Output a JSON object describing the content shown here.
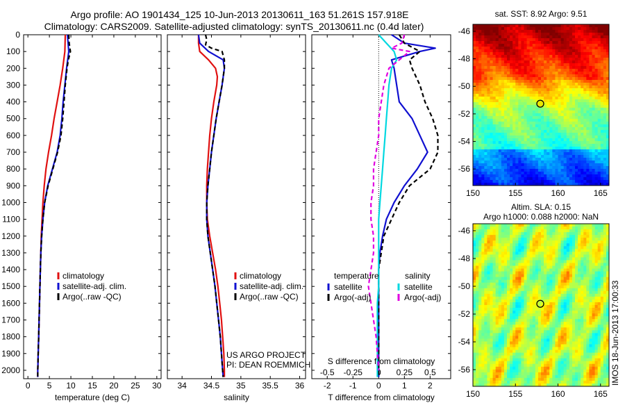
{
  "header": {
    "line1": "Argo profile: AO 1901434_125 10-Jun-2013 20130611_163 51.261S 157.918E",
    "line2": "Climatology: CARS2009. Satellite-adjusted climatology: synTS_20130611.nc (0.4d later)"
  },
  "colors": {
    "climatology": "#e01010",
    "satellite": "#1010d0",
    "argo": "#000000",
    "sal_satellite": "#00d8e0",
    "sal_argo": "#e000e0"
  },
  "depth_axis": {
    "ylim": [
      0,
      2050
    ],
    "ticks": [
      0,
      100,
      200,
      300,
      400,
      500,
      600,
      700,
      800,
      900,
      1000,
      1100,
      1200,
      1300,
      1400,
      1500,
      1600,
      1700,
      1800,
      1900,
      2000
    ]
  },
  "credits": {
    "line1": "US ARGO PROJECT",
    "line2": "PI: DEAN ROEMMICH"
  },
  "timestamp": "IMOS 18-Jun-2013 17:00:33",
  "chart_data": [
    {
      "type": "line",
      "xlabel": "temperature (deg C)",
      "ylabel": "",
      "xlim": [
        -1,
        31
      ],
      "ylim": [
        2050,
        0
      ],
      "xticks": [
        0,
        5,
        10,
        15,
        20,
        25,
        30
      ],
      "legend": [
        "climatology",
        "satellite-adj. clim.",
        "Argo(..raw -QC)"
      ],
      "series": [
        {
          "name": "climatology",
          "y": [
            0,
            100,
            200,
            300,
            400,
            500,
            600,
            700,
            800,
            900,
            1000,
            1100,
            1200,
            1300,
            1400,
            1500,
            1600,
            1700,
            1800,
            1900,
            2000,
            2040
          ],
          "values": [
            8.7,
            8.6,
            8.1,
            7.5,
            6.8,
            6.1,
            5.5,
            4.8,
            4.2,
            3.8,
            3.5,
            3.3,
            3.1,
            3.0,
            2.9,
            2.8,
            2.7,
            2.6,
            2.5,
            2.4,
            2.3,
            2.3
          ]
        },
        {
          "name": "satellite-adj. clim.",
          "y": [
            0,
            100,
            200,
            300,
            400,
            500,
            600,
            700,
            800,
            900,
            1000,
            1100,
            1200,
            1300,
            1400,
            1500,
            1600,
            1700,
            1800,
            1900,
            2000,
            2040
          ],
          "values": [
            9.2,
            9.5,
            9.0,
            8.6,
            8.2,
            7.9,
            7.5,
            6.8,
            5.7,
            4.6,
            3.9,
            3.5,
            3.2,
            3.0,
            2.9,
            2.8,
            2.7,
            2.6,
            2.5,
            2.4,
            2.3,
            2.3
          ]
        },
        {
          "name": "Argo(..raw -QC)",
          "y": [
            0,
            50,
            100,
            150,
            200,
            300,
            400,
            500,
            600,
            700,
            800,
            900,
            1000,
            1100,
            1200,
            1300,
            1400,
            1500,
            1600,
            1700,
            1800,
            1900,
            2000,
            2040
          ],
          "values": [
            9.5,
            9.6,
            9.9,
            9.4,
            9.1,
            8.7,
            8.4,
            8.1,
            7.7,
            6.9,
            5.8,
            4.7,
            3.9,
            3.5,
            3.2,
            3.0,
            2.9,
            2.8,
            2.7,
            2.6,
            2.5,
            2.4,
            2.3,
            2.3
          ]
        }
      ]
    },
    {
      "type": "line",
      "xlabel": "salinity",
      "ylabel": "",
      "xlim": [
        33.75,
        36.1
      ],
      "ylim": [
        2050,
        0
      ],
      "xticks": [
        34,
        34.5,
        35,
        35.5,
        36
      ],
      "legend": [
        "climatology",
        "satellite-adj. clim.",
        "Argo(..raw -QC)"
      ],
      "series": [
        {
          "name": "climatology",
          "y": [
            0,
            50,
            100,
            150,
            200,
            250,
            300,
            400,
            500,
            600,
            700,
            800,
            900,
            1000,
            1100,
            1200,
            1300,
            1400,
            1500,
            1600,
            1700,
            1800,
            1900,
            2000,
            2040
          ],
          "values": [
            34.28,
            34.28,
            34.3,
            34.45,
            34.57,
            34.6,
            34.59,
            34.54,
            34.5,
            34.47,
            34.45,
            34.43,
            34.42,
            34.42,
            34.43,
            34.47,
            34.52,
            34.57,
            34.61,
            34.64,
            34.67,
            34.69,
            34.71,
            34.72,
            34.72
          ]
        },
        {
          "name": "satellite-adj. clim.",
          "y": [
            0,
            50,
            100,
            150,
            200,
            300,
            400,
            500,
            600,
            700,
            800,
            900,
            1000,
            1100,
            1200,
            1300,
            1400,
            1500,
            1600,
            1700,
            1800,
            1900,
            2000,
            2040
          ],
          "values": [
            34.28,
            34.3,
            34.45,
            34.7,
            34.72,
            34.68,
            34.63,
            34.58,
            34.54,
            34.5,
            34.47,
            34.44,
            34.42,
            34.42,
            34.44,
            34.48,
            34.52,
            34.56,
            34.59,
            34.62,
            34.65,
            34.67,
            34.69,
            34.7
          ]
        },
        {
          "name": "Argo(..raw -QC)",
          "y": [
            0,
            30,
            60,
            80,
            100,
            150,
            200,
            300,
            400,
            500,
            600,
            700,
            800,
            900,
            1000,
            1100,
            1200,
            1300,
            1400,
            1500,
            1600,
            1700,
            1800,
            1900,
            2000,
            2040
          ],
          "values": [
            34.4,
            34.42,
            34.4,
            34.5,
            34.68,
            34.72,
            34.72,
            34.68,
            34.63,
            34.58,
            34.54,
            34.5,
            34.47,
            34.44,
            34.42,
            34.42,
            34.44,
            34.48,
            34.52,
            34.56,
            34.59,
            34.62,
            34.65,
            34.67,
            34.69,
            34.7
          ]
        }
      ]
    },
    {
      "type": "line",
      "xlabel": "T difference from climatology",
      "subtitle": "S difference from climatology",
      "xlim": [
        -2.6,
        2.8
      ],
      "ylim": [
        2050,
        0
      ],
      "xticks": [
        -2,
        -1,
        0,
        1,
        2
      ],
      "top_axis": {
        "ticks": [
          -0.5,
          -0.25,
          0,
          0.25,
          0.5
        ],
        "scale": 4
      },
      "legend_groups": [
        {
          "title": "temperature",
          "entries": [
            "satellite",
            "Argo(-adj)"
          ]
        },
        {
          "title": "salinity",
          "entries": [
            "satellite",
            "Argo(-adj)"
          ]
        }
      ],
      "series": [
        {
          "name": "T satellite",
          "y": [
            0,
            50,
            80,
            100,
            150,
            200,
            300,
            400,
            500,
            600,
            700,
            800,
            900,
            1000,
            1100,
            1200,
            1300,
            1400,
            1500,
            1600,
            1700,
            1800,
            1900,
            2000,
            2040
          ],
          "values": [
            0.5,
            1.0,
            2.2,
            1.6,
            0.5,
            0.6,
            0.7,
            0.8,
            1.3,
            1.6,
            1.9,
            1.5,
            1.0,
            0.6,
            0.3,
            0.15,
            0.05,
            0.0,
            0.0,
            0.0,
            0.0,
            0.0,
            0.0,
            0.0,
            0.0
          ]
        },
        {
          "name": "T Argo(-adj)",
          "y": [
            0,
            50,
            100,
            150,
            200,
            300,
            400,
            500,
            600,
            700,
            800,
            900,
            1000,
            1100,
            1200,
            1300,
            1400,
            1500,
            1600,
            1700,
            1800,
            1900,
            2000,
            2040
          ],
          "values": [
            0.8,
            1.0,
            1.6,
            1.2,
            1.3,
            1.6,
            1.8,
            2.1,
            2.3,
            2.3,
            2.0,
            1.2,
            0.8,
            0.5,
            0.2,
            0.1,
            0.0,
            0.0,
            0.0,
            0.0,
            0.0,
            0.0,
            0.0,
            0.0
          ]
        },
        {
          "name": "S satellite",
          "y": [
            0,
            50,
            100,
            150,
            200,
            300,
            400,
            500,
            600,
            700,
            800,
            900,
            1000,
            1100,
            1200,
            1300,
            1400,
            1500,
            1600,
            1700,
            1800,
            1900,
            2000,
            2040
          ],
          "values": [
            0.0,
            0.3,
            0.6,
            0.7,
            0.5,
            0.4,
            0.35,
            0.3,
            0.25,
            0.2,
            0.15,
            0.1,
            0.05,
            0.0,
            0.0,
            0.0,
            0.0,
            0.0,
            -0.05,
            -0.05,
            -0.05,
            -0.05,
            -0.05,
            -0.05
          ]
        },
        {
          "name": "S Argo(-adj)",
          "y": [
            0,
            50,
            80,
            100,
            150,
            200,
            250,
            300,
            400,
            500,
            600,
            700,
            800,
            900,
            1000,
            1100,
            1200,
            1300,
            1400,
            1500,
            1600,
            1700,
            1800,
            1900,
            2000
          ],
          "values": [
            1.0,
            0.9,
            0.5,
            1.2,
            0.8,
            0.4,
            0.3,
            0.2,
            0.1,
            0.0,
            0.0,
            -0.1,
            -0.2,
            -0.2,
            -0.3,
            -0.3,
            -0.2,
            -0.2,
            -0.3,
            -0.4,
            -0.3,
            -0.2,
            -0.1,
            -0.05,
            0.0
          ]
        }
      ]
    },
    {
      "type": "heatmap",
      "title": "sat. SST: 8.92  Argo: 9.51",
      "xlim": [
        150,
        166
      ],
      "ylim": [
        -57.2,
        -45.5
      ],
      "xticks": [
        150,
        155,
        160,
        165
      ],
      "yticks": [
        -46,
        -48,
        -50,
        -52,
        -54,
        -56
      ],
      "marker": {
        "lon": 157.918,
        "lat": -51.261
      },
      "colormap": "jet"
    },
    {
      "type": "heatmap",
      "title": "Altim. SLA: 0.15",
      "subtitle": "Argo h1000: 0.088  h2000: NaN",
      "xlim": [
        150,
        166
      ],
      "ylim": [
        -57.2,
        -45.5
      ],
      "xticks": [
        150,
        155,
        160,
        165
      ],
      "yticks": [
        -46,
        -48,
        -50,
        -52,
        -54,
        -56
      ],
      "marker": {
        "lon": 157.918,
        "lat": -51.261
      },
      "colormap": "jet"
    }
  ]
}
